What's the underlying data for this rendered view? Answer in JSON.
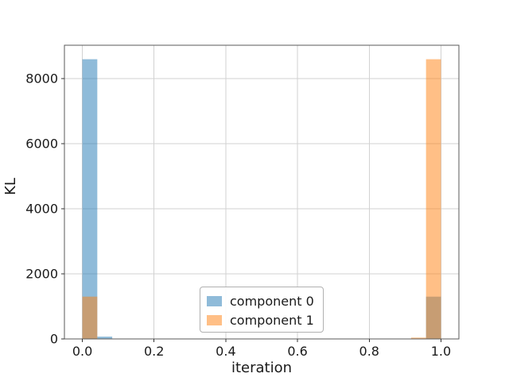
{
  "chart_data": {
    "type": "bar",
    "title": "",
    "xlabel": "iteration",
    "ylabel": "KL",
    "xlim": [
      -0.05,
      1.05
    ],
    "ylim": [
      0,
      9030
    ],
    "grid": true,
    "legend_position": "lower center",
    "bar_alpha": 0.5,
    "bin_width": 0.04167,
    "x_ticks": [
      {
        "value": 0.0,
        "label": "0.0"
      },
      {
        "value": 0.2,
        "label": "0.2"
      },
      {
        "value": 0.4,
        "label": "0.4"
      },
      {
        "value": 0.6,
        "label": "0.6"
      },
      {
        "value": 0.8,
        "label": "0.8"
      },
      {
        "value": 1.0,
        "label": "1.0"
      }
    ],
    "y_ticks": [
      {
        "value": 0,
        "label": "0"
      },
      {
        "value": 2000,
        "label": "2000"
      },
      {
        "value": 4000,
        "label": "4000"
      },
      {
        "value": 6000,
        "label": "6000"
      },
      {
        "value": 8000,
        "label": "8000"
      }
    ],
    "series": [
      {
        "name": "component 0",
        "color": "#1f77b4",
        "bars": [
          {
            "x0": 0.0,
            "x1": 0.04167,
            "value": 8600
          },
          {
            "x0": 0.04167,
            "x1": 0.08333,
            "value": 70
          },
          {
            "x0": 0.95833,
            "x1": 1.0,
            "value": 1300
          }
        ]
      },
      {
        "name": "component 1",
        "color": "#ff7f0e",
        "bars": [
          {
            "x0": 0.0,
            "x1": 0.04167,
            "value": 1300
          },
          {
            "x0": 0.91667,
            "x1": 0.95833,
            "value": 40
          },
          {
            "x0": 0.95833,
            "x1": 1.0,
            "value": 8600
          }
        ]
      }
    ],
    "style": {
      "grid_color": "#d2d2d2",
      "spine_color": "#5a5a5a",
      "tick_color": "#333333",
      "text_color": "#1a1a1a"
    }
  }
}
